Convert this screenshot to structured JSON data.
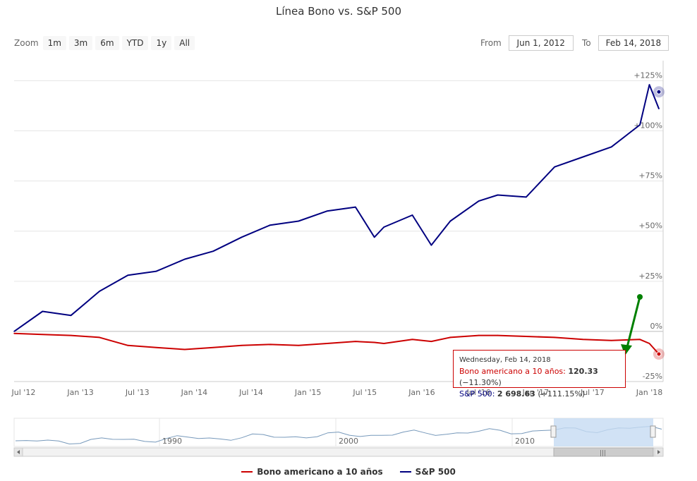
{
  "title": "Línea Bono vs. S&P 500",
  "zoom": {
    "label": "Zoom",
    "buttons": [
      "1m",
      "3m",
      "6m",
      "YTD",
      "1y",
      "All"
    ]
  },
  "range": {
    "from_label": "From",
    "from_value": "Jun 1, 2012",
    "to_label": "To",
    "to_value": "Feb 14, 2018"
  },
  "tooltip": {
    "date": "Wednesday, Feb 14, 2018",
    "bono_label": "Bono americano a 10 años",
    "bono_value": "120.33",
    "bono_change": "(−11.30%)",
    "sp_label": "S&P 500",
    "sp_value": "2 698.63",
    "sp_change": "(+111.15%)"
  },
  "legend": [
    {
      "name": "Bono americano a 10 años",
      "color": "#cc0000"
    },
    {
      "name": "S&P 500",
      "color": "#000080"
    }
  ],
  "navigator": {
    "labels": [
      "1990",
      "2000",
      "2010"
    ]
  },
  "colors": {
    "bono": "#cc0000",
    "sp": "#000080",
    "arrow": "#008000"
  },
  "chart_data": {
    "type": "line",
    "title": "Línea Bono vs. S&P 500",
    "xlabel": "",
    "ylabel": "",
    "y_unit": "% change",
    "ylim": [
      -25,
      135
    ],
    "x_tick_labels": [
      "Jul '12",
      "Jan '13",
      "Jul '13",
      "Jan '14",
      "Jul '14",
      "Jan '15",
      "Jul '15",
      "Jan '16",
      "Jul '16",
      "Jan '17",
      "Jul '17",
      "Jan '18"
    ],
    "y_tick_labels": [
      "-25%",
      "0%",
      "+25%",
      "+50%",
      "+75%",
      "+100%",
      "+125%"
    ],
    "y_ticks": [
      -25,
      0,
      25,
      50,
      75,
      100,
      125
    ],
    "x": [
      "2012-06",
      "2012-09",
      "2012-12",
      "2013-03",
      "2013-06",
      "2013-09",
      "2013-12",
      "2014-03",
      "2014-06",
      "2014-09",
      "2014-12",
      "2015-03",
      "2015-06",
      "2015-08",
      "2015-09",
      "2015-12",
      "2016-02",
      "2016-04",
      "2016-07",
      "2016-09",
      "2016-12",
      "2017-03",
      "2017-06",
      "2017-09",
      "2017-12",
      "2018-01",
      "2018-02"
    ],
    "series": [
      {
        "name": "S&P 500",
        "values": [
          0,
          10,
          8,
          20,
          28,
          30,
          36,
          40,
          47,
          53,
          55,
          60,
          62,
          47,
          52,
          58,
          43,
          55,
          65,
          68,
          67,
          82,
          87,
          92,
          103,
          123,
          111
        ]
      },
      {
        "name": "Bono americano a 10 años",
        "values": [
          -1,
          -1.5,
          -2,
          -3,
          -7,
          -8,
          -9,
          -8,
          -7,
          -6.5,
          -7,
          -6,
          -5,
          -5.5,
          -6,
          -4,
          -5,
          -3,
          -2,
          -2,
          -2.5,
          -3,
          -4,
          -4.5,
          -4,
          -6,
          -11.3
        ]
      }
    ],
    "navigator_x_labels": [
      "1990",
      "2000",
      "2010"
    ],
    "grid": true,
    "legend_position": "bottom-center"
  }
}
